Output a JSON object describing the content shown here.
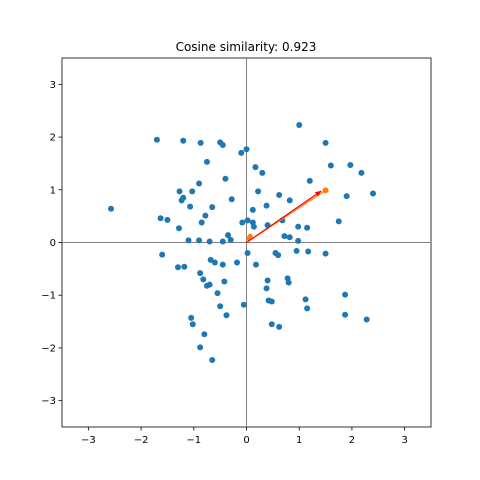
{
  "chart_data": {
    "type": "scatter",
    "title": "Cosine similarity: 0.923",
    "xlabel": "",
    "ylabel": "",
    "xlim": [
      -3.5,
      3.5
    ],
    "ylim": [
      -3.5,
      3.5
    ],
    "x_ticks": [
      -3,
      -2,
      -1,
      0,
      1,
      2,
      3
    ],
    "y_ticks": [
      -3,
      -2,
      -1,
      0,
      1,
      2,
      3
    ],
    "grid": false,
    "reference_lines": {
      "x": 0,
      "y": 0,
      "color": "#808080"
    },
    "colors": {
      "points": "#1f77b4",
      "vector_a": "#ff7f0e",
      "arrow_b": "#ff0000"
    },
    "series": [
      {
        "points": [
          [
            -2.57,
            0.64
          ],
          [
            -1.7,
            1.95
          ],
          [
            -1.63,
            0.46
          ],
          [
            -1.5,
            0.43
          ],
          [
            -1.6,
            -0.23
          ],
          [
            -1.2,
            1.93
          ],
          [
            -1.27,
            0.97
          ],
          [
            -1.23,
            0.8
          ],
          [
            -1.2,
            0.85
          ],
          [
            -1.03,
            0.97
          ],
          [
            -1.07,
            0.68
          ],
          [
            -0.9,
            1.12
          ],
          [
            -0.87,
            1.89
          ],
          [
            -0.75,
            1.53
          ],
          [
            -0.5,
            1.9
          ],
          [
            -0.45,
            1.85
          ],
          [
            -0.1,
            1.7
          ],
          [
            0.0,
            1.77
          ],
          [
            -0.4,
            1.21
          ],
          [
            0.17,
            1.43
          ],
          [
            0.3,
            1.32
          ],
          [
            0.22,
            0.97
          ],
          [
            1.0,
            2.23
          ],
          [
            1.5,
            1.89
          ],
          [
            1.6,
            1.46
          ],
          [
            1.97,
            1.47
          ],
          [
            2.18,
            1.32
          ],
          [
            2.4,
            0.93
          ],
          [
            1.9,
            0.88
          ],
          [
            1.2,
            1.17
          ],
          [
            0.62,
            0.9
          ],
          [
            0.82,
            0.8
          ],
          [
            0.38,
            0.7
          ],
          [
            0.12,
            0.62
          ],
          [
            -0.28,
            0.82
          ],
          [
            -0.65,
            0.67
          ],
          [
            -0.78,
            0.51
          ],
          [
            -0.85,
            0.38
          ],
          [
            -1.28,
            0.27
          ],
          [
            -1.1,
            0.04
          ],
          [
            -0.9,
            0.04
          ],
          [
            -0.7,
            0.02
          ],
          [
            -0.45,
            0.02
          ],
          [
            -0.35,
            0.14
          ],
          [
            -0.3,
            0.05
          ],
          [
            -0.08,
            0.38
          ],
          [
            0.02,
            0.42
          ],
          [
            0.12,
            0.38
          ],
          [
            0.14,
            0.3
          ],
          [
            0.4,
            0.33
          ],
          [
            0.68,
            0.42
          ],
          [
            0.72,
            0.12
          ],
          [
            0.82,
            0.1
          ],
          [
            0.98,
            0.3
          ],
          [
            1.15,
            0.28
          ],
          [
            1.75,
            0.4
          ],
          [
            0.98,
            0.03
          ],
          [
            0.95,
            -0.16
          ],
          [
            1.17,
            -0.17
          ],
          [
            1.5,
            -0.21
          ],
          [
            -0.68,
            -0.33
          ],
          [
            -0.6,
            -0.38
          ],
          [
            -0.45,
            -0.42
          ],
          [
            -0.18,
            -0.38
          ],
          [
            0.02,
            -0.2
          ],
          [
            0.18,
            -0.42
          ],
          [
            0.55,
            -0.2
          ],
          [
            0.6,
            -0.24
          ],
          [
            0.4,
            -0.72
          ],
          [
            0.38,
            -0.87
          ],
          [
            0.78,
            -0.68
          ],
          [
            0.8,
            -0.76
          ],
          [
            1.87,
            -0.99
          ],
          [
            -1.3,
            -0.47
          ],
          [
            -1.18,
            -0.46
          ],
          [
            -0.88,
            -0.58
          ],
          [
            -0.82,
            -0.7
          ],
          [
            -0.7,
            -0.8
          ],
          [
            -0.75,
            -0.82
          ],
          [
            -0.55,
            -0.96
          ],
          [
            -0.42,
            -0.74
          ],
          [
            0.48,
            -1.12
          ],
          [
            0.42,
            -1.1
          ],
          [
            1.12,
            -1.08
          ],
          [
            1.15,
            -1.25
          ],
          [
            1.87,
            -1.37
          ],
          [
            2.28,
            -1.46
          ],
          [
            -0.5,
            -1.21
          ],
          [
            -0.38,
            -1.38
          ],
          [
            -0.05,
            -1.18
          ],
          [
            -1.05,
            -1.43
          ],
          [
            -1.02,
            -1.55
          ],
          [
            -0.8,
            -1.74
          ],
          [
            -0.88,
            -1.99
          ],
          [
            -0.65,
            -2.23
          ],
          [
            0.48,
            -1.55
          ],
          [
            0.62,
            -1.6
          ]
        ]
      }
    ],
    "vector_a": [
      1.5,
      0.99
    ],
    "arrow_b": [
      1.42,
      0.98
    ],
    "origin_markers": [
      [
        0.05,
        0.08
      ],
      [
        0.07,
        0.12
      ]
    ]
  }
}
